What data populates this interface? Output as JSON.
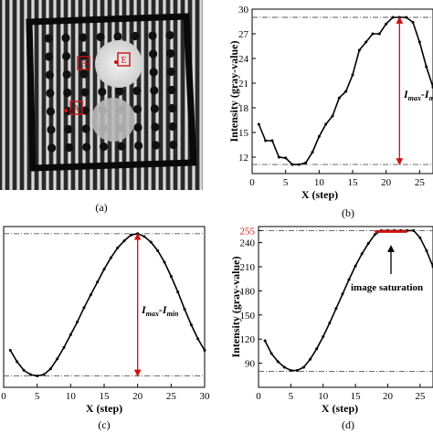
{
  "panel_a": {
    "caption": "(a)",
    "point_labels": [
      "E",
      "B",
      "A"
    ]
  },
  "chart_data": [
    {
      "type": "line",
      "caption": "(b)",
      "xlabel": "X (step)",
      "ylabel": "Intensity (gray-value)",
      "xlim": [
        0,
        27
      ],
      "ylim": [
        10,
        30
      ],
      "xticks": [
        0,
        5,
        10,
        15,
        20,
        25
      ],
      "yticks": [
        12,
        15,
        18,
        21,
        24,
        27,
        30
      ],
      "ref_lines": [
        29,
        11.1
      ],
      "series": [
        {
          "x": [
            1,
            2,
            3,
            4,
            5,
            6,
            7,
            8,
            9,
            10,
            11,
            12,
            13,
            14,
            15,
            16,
            17,
            18,
            19,
            20,
            21,
            22,
            23,
            24,
            25,
            26,
            27
          ],
          "values": [
            16,
            14,
            14,
            12,
            11.9,
            11.1,
            11.1,
            11.3,
            12.6,
            14.5,
            16,
            17,
            19.2,
            20,
            22,
            25,
            26,
            27,
            27,
            28.2,
            29,
            29,
            29,
            28.4,
            26,
            23,
            20.5
          ]
        }
      ],
      "annotation": {
        "text_main": "I",
        "sub1": "max",
        "dash": "-I",
        "sub2": "m",
        "x": 22,
        "from": 11.1,
        "to": 29
      }
    },
    {
      "type": "line",
      "caption": "(c)",
      "xlabel": "X (step)",
      "xlim": [
        0,
        30
      ],
      "ylim": [
        -0.08,
        1.05
      ],
      "xticks": [
        0,
        5,
        10,
        15,
        20,
        25,
        30
      ],
      "ref_lines": [
        1,
        0
      ],
      "series": [
        {
          "x": [
            1,
            2,
            3,
            4,
            5,
            6,
            7,
            8,
            9,
            10,
            11,
            12,
            13,
            14,
            15,
            16,
            17,
            18,
            19,
            20,
            21,
            22,
            23,
            24,
            25,
            26,
            27,
            28,
            29,
            30
          ],
          "values": [
            0.18,
            0.1,
            0.04,
            0.01,
            0.0,
            0.01,
            0.05,
            0.12,
            0.2,
            0.29,
            0.38,
            0.48,
            0.57,
            0.66,
            0.75,
            0.83,
            0.9,
            0.95,
            0.99,
            1.0,
            0.98,
            0.94,
            0.88,
            0.8,
            0.7,
            0.59,
            0.47,
            0.36,
            0.26,
            0.18
          ]
        }
      ],
      "annotation": {
        "text_main": "I",
        "sub1": "max",
        "dash": "-I",
        "sub2": "min",
        "x": 20,
        "from": 0,
        "to": 1
      }
    },
    {
      "type": "line",
      "caption": "(d)",
      "xlabel": "X (step)",
      "ylabel": "Intensity (gray-value)",
      "xlim": [
        0,
        27
      ],
      "ylim": [
        60,
        260
      ],
      "xticks": [
        0,
        5,
        10,
        15,
        20,
        25
      ],
      "yticks": [
        90,
        120,
        150,
        180,
        210,
        240,
        255
      ],
      "highlight_tick": 255,
      "ref_lines": [
        255,
        80
      ],
      "series": [
        {
          "x": [
            1,
            2,
            3,
            4,
            5,
            6,
            7,
            8,
            9,
            10,
            11,
            12,
            13,
            14,
            15,
            16,
            17,
            18,
            19,
            20,
            21,
            22,
            23,
            24,
            25,
            26,
            27
          ],
          "values": [
            118,
            102,
            92,
            85,
            81,
            81,
            85,
            95,
            108,
            123,
            140,
            158,
            176,
            194,
            211,
            226,
            239,
            250,
            255,
            255,
            255,
            255,
            255,
            255,
            246,
            230,
            210
          ]
        }
      ],
      "saturation": {
        "x_from": 18,
        "x_to": 23,
        "value": 255
      },
      "annotation": {
        "text": "image saturation"
      }
    }
  ]
}
